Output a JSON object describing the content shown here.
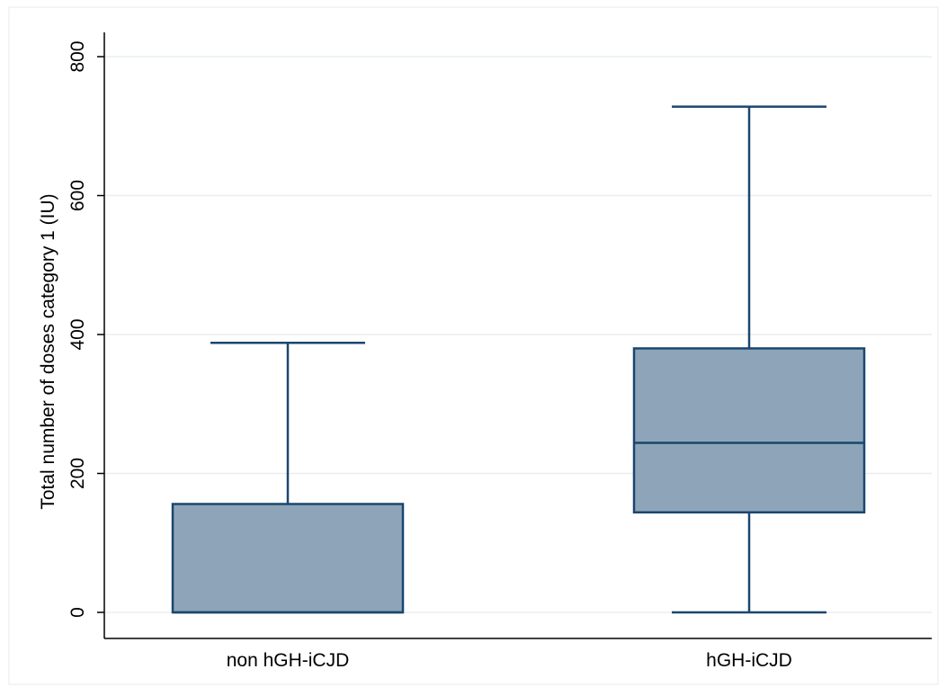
{
  "chart_data": {
    "type": "boxplot",
    "title": "",
    "xlabel": "",
    "ylabel": "Total number of doses category 1 (IU)",
    "ylim": [
      0,
      840
    ],
    "yticks": [
      0,
      200,
      400,
      600,
      800
    ],
    "grid": true,
    "legend": "none",
    "categories": [
      "non hGH-iCJD",
      "hGH-iCJD"
    ],
    "boxes": [
      {
        "category": "non hGH-iCJD",
        "whisker_low": 0,
        "q1": 0,
        "median": 0,
        "q3": 156,
        "whisker_high": 388
      },
      {
        "category": "hGH-iCJD",
        "whisker_low": 0,
        "q1": 144,
        "median": 244,
        "q3": 380,
        "whisker_high": 728
      }
    ],
    "colors": {
      "box_fill": "#8ea5b9",
      "box_stroke": "#1a476f",
      "grid": "#e8eef2",
      "axis": "#000000",
      "frame": "#eaeaea"
    }
  }
}
